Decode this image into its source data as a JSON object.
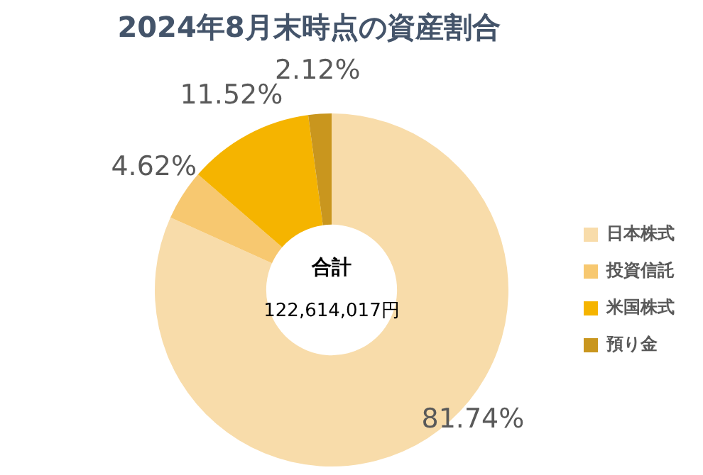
{
  "chart_data": {
    "type": "donut",
    "title": "2024年8月末時点の資産割合",
    "categories": [
      "日本株式",
      "投資信託",
      "米国株式",
      "預り金"
    ],
    "values": [
      81.74,
      4.62,
      11.52,
      2.12
    ],
    "colors": [
      "#f8dcaa",
      "#f7c870",
      "#f5b400",
      "#c9961e"
    ],
    "value_labels": [
      "81.74%",
      "4.62%",
      "11.52%",
      "2.12%"
    ],
    "annotations": [
      "合計",
      "122,614,017円"
    ],
    "legend": "right"
  }
}
